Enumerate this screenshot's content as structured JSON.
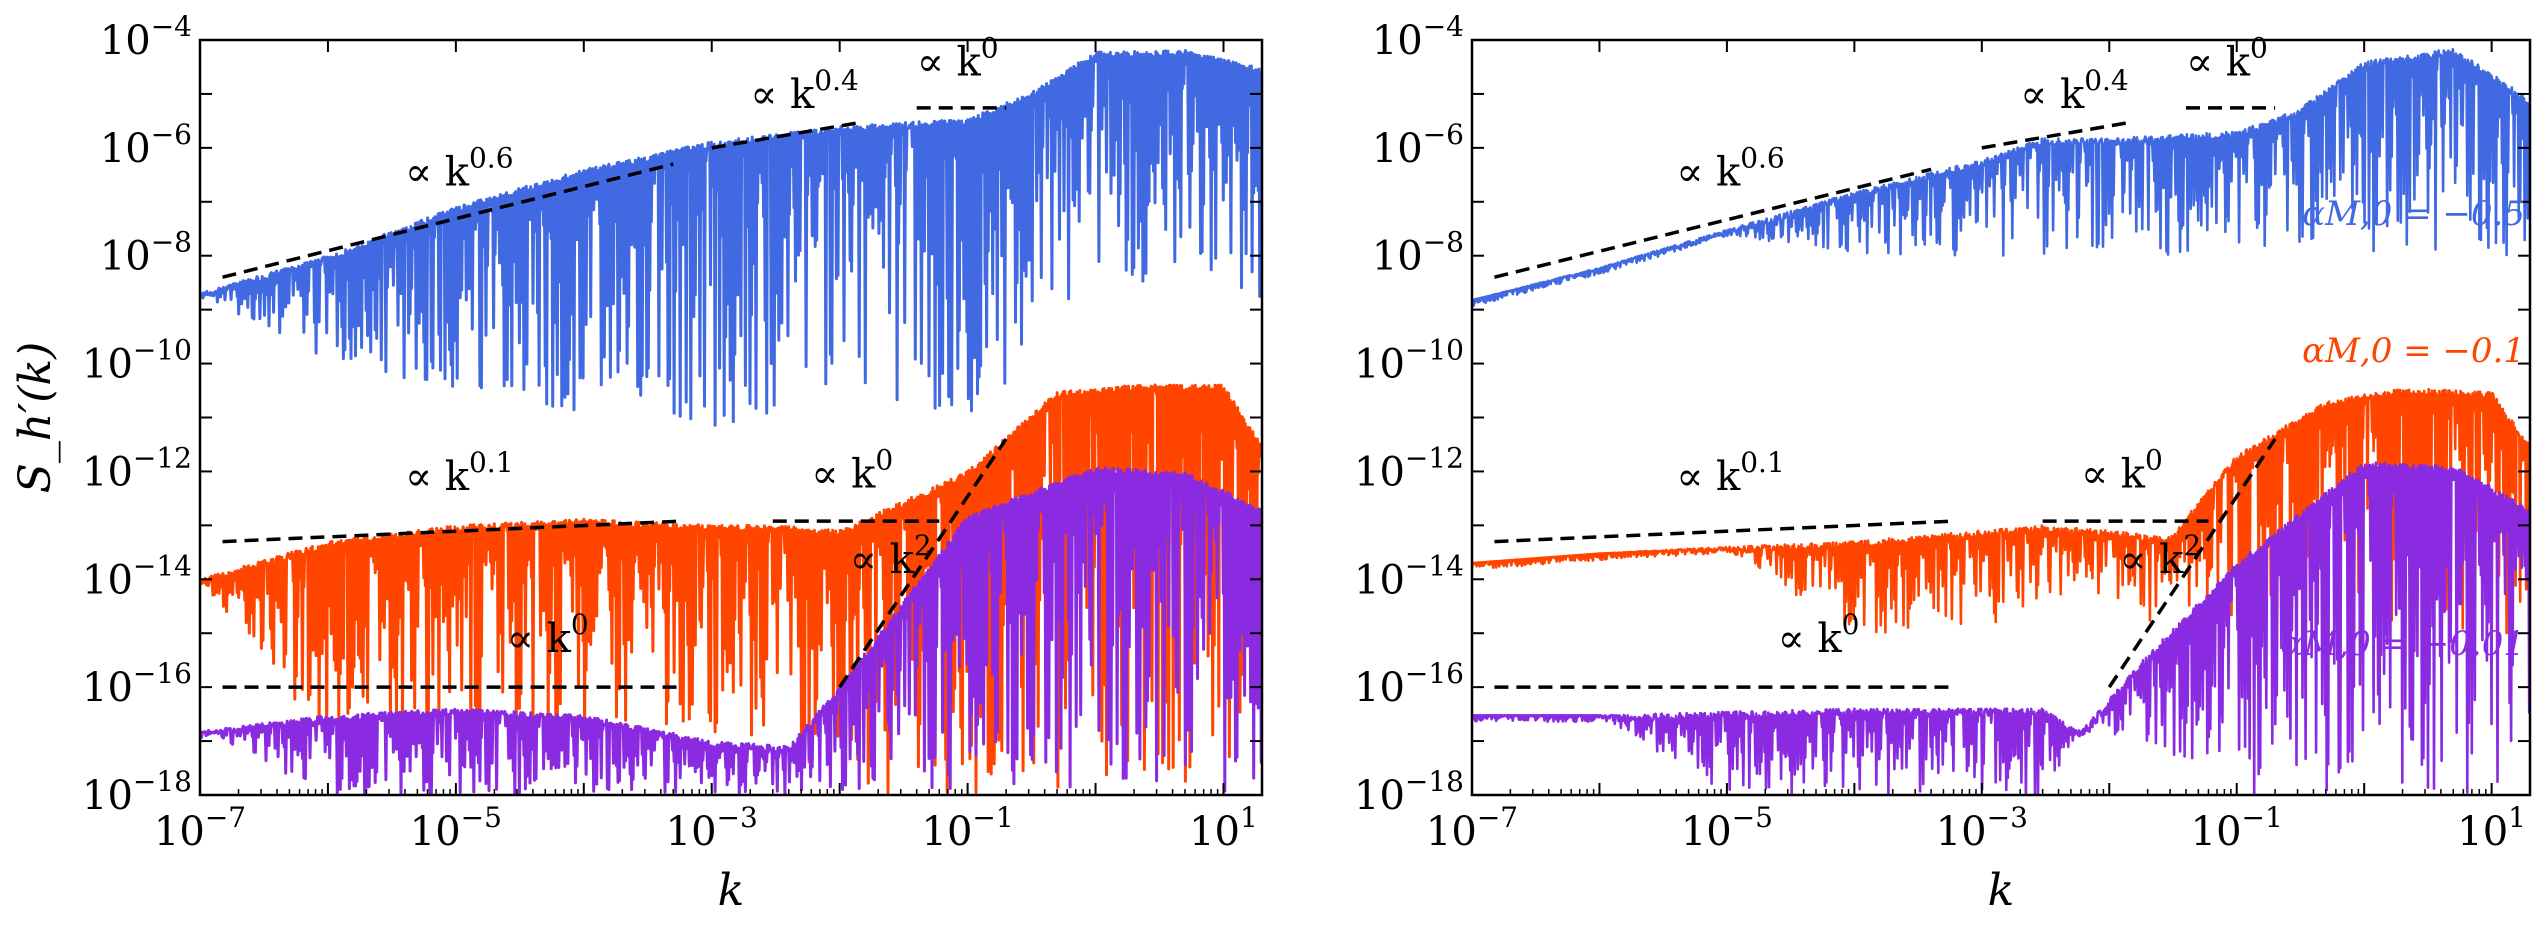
{
  "chart_data": [
    {
      "type": "line",
      "panel": "left",
      "xlabel": "k",
      "ylabel": "S_h′(k)",
      "xscale": "log",
      "yscale": "log",
      "xlim": [
        1e-07,
        20
      ],
      "ylim": [
        1e-18,
        0.0001
      ],
      "x_ticks": [
        {
          "value": 1e-07,
          "base": "10",
          "exp": "−7"
        },
        {
          "value": 1e-05,
          "base": "10",
          "exp": "−5"
        },
        {
          "value": 0.001,
          "base": "10",
          "exp": "−3"
        },
        {
          "value": 0.1,
          "base": "10",
          "exp": "−1"
        },
        {
          "value": 10,
          "base": "10",
          "exp": "1"
        }
      ],
      "y_ticks": [
        {
          "value": 0.0001,
          "base": "10",
          "exp": "−4"
        },
        {
          "value": 1e-06,
          "base": "10",
          "exp": "−6"
        },
        {
          "value": 1e-08,
          "base": "10",
          "exp": "−8"
        },
        {
          "value": 1e-10,
          "base": "10",
          "exp": "−10"
        },
        {
          "value": 1e-12,
          "base": "10",
          "exp": "−12"
        },
        {
          "value": 1e-14,
          "base": "10",
          "exp": "−14"
        },
        {
          "value": 1e-16,
          "base": "10",
          "exp": "−16"
        },
        {
          "value": 1e-18,
          "base": "10",
          "exp": "−18"
        }
      ],
      "series": [
        {
          "color": "#4169e1",
          "x": [
            1e-07,
            1e-06,
            1e-05,
            0.0001,
            0.001,
            0.01,
            0.1,
            0.3,
            1,
            5,
            20
          ],
          "upper": [
            2e-09,
            1e-08,
            8e-08,
            4e-07,
            1.3e-06,
            2.5e-06,
            3.5e-06,
            1e-05,
            6e-05,
            6.5e-05,
            3e-05
          ],
          "lower": [
            2e-09,
            1e-10,
            3e-11,
            1e-11,
            5e-12,
            1e-11,
            1e-11,
            1e-10,
            2e-09,
            5e-09,
            1e-09
          ]
        },
        {
          "color": "#ff4500",
          "x": [
            1e-07,
            1e-06,
            1e-05,
            0.0001,
            0.001,
            0.003,
            0.01,
            0.1,
            0.5,
            2,
            10,
            20
          ],
          "upper": [
            1e-14,
            5e-14,
            1e-13,
            1.3e-13,
            1e-13,
            1e-13,
            8e-14,
            1e-12,
            3e-11,
            4e-11,
            4e-11,
            3e-12
          ],
          "lower": [
            1e-14,
            1e-17,
            1e-17,
            1e-17,
            1e-17,
            1e-17,
            1e-18,
            1e-18,
            1e-18,
            1e-18,
            1e-18,
            1e-18
          ]
        },
        {
          "color": "#8a2be2",
          "x": [
            1e-07,
            1e-06,
            1e-05,
            0.0001,
            0.001,
            0.004,
            0.01,
            0.1,
            1,
            5,
            20
          ],
          "upper": [
            1.5e-17,
            3e-17,
            4e-17,
            3e-17,
            1e-17,
            8e-18,
            1e-16,
            1.5e-13,
            1.2e-12,
            1e-12,
            2e-13
          ],
          "lower": [
            1.5e-17,
            1e-18,
            1e-18,
            1e-18,
            1e-18,
            1e-18,
            1e-18,
            1e-18,
            1e-18,
            1e-18,
            1e-18
          ]
        }
      ],
      "reference_lines": [
        {
          "x": [
            1.5e-07,
            0.0005
          ],
          "y": [
            4e-09,
            5e-07
          ],
          "label": "∝ k",
          "exp": "0.6",
          "label_at": [
            4e-06,
            2e-07
          ]
        },
        {
          "x": [
            0.001,
            0.015
          ],
          "y": [
            1e-06,
            3e-06
          ],
          "label": "∝ k",
          "exp": "0.4",
          "label_at": [
            0.002,
            5.5e-06
          ]
        },
        {
          "x": [
            0.04,
            0.2
          ],
          "y": [
            5.5e-06,
            5.5e-06
          ],
          "label": "∝ k",
          "exp": "0",
          "label_at": [
            0.04,
            2.2e-05
          ]
        },
        {
          "x": [
            1.5e-07,
            0.0006
          ],
          "y": [
            5e-14,
            1.2e-13
          ],
          "label": "∝ k",
          "exp": "0.1",
          "label_at": [
            4e-06,
            4.5e-13
          ]
        },
        {
          "x": [
            0.003,
            0.06
          ],
          "y": [
            1.2e-13,
            1.2e-13
          ],
          "label": "∝ k",
          "exp": "0",
          "label_at": [
            0.006,
            5e-13
          ]
        },
        {
          "x": [
            0.01,
            0.2
          ],
          "y": [
            1e-16,
            4e-12
          ],
          "label": "∝ k",
          "exp": "2",
          "label_at": [
            0.012,
            1.3e-14
          ]
        },
        {
          "x": [
            1.5e-07,
            0.0006
          ],
          "y": [
            1e-16,
            1e-16
          ],
          "label": "∝ k",
          "exp": "0",
          "label_at": [
            2.5e-05,
            4.5e-16
          ]
        }
      ]
    },
    {
      "type": "line",
      "panel": "right",
      "xlabel": "k",
      "xscale": "log",
      "yscale": "log",
      "xlim": [
        1e-07,
        20
      ],
      "ylim": [
        1e-18,
        0.0001
      ],
      "x_ticks": [
        {
          "value": 1e-07,
          "base": "10",
          "exp": "−7"
        },
        {
          "value": 1e-05,
          "base": "10",
          "exp": "−5"
        },
        {
          "value": 0.001,
          "base": "10",
          "exp": "−3"
        },
        {
          "value": 0.1,
          "base": "10",
          "exp": "−1"
        },
        {
          "value": 10,
          "base": "10",
          "exp": "1"
        }
      ],
      "y_ticks": [
        {
          "value": 0.0001,
          "base": "10",
          "exp": "−4"
        },
        {
          "value": 1e-06,
          "base": "10",
          "exp": "−6"
        },
        {
          "value": 1e-08,
          "base": "10",
          "exp": "−8"
        },
        {
          "value": 1e-10,
          "base": "10",
          "exp": "−10"
        },
        {
          "value": 1e-12,
          "base": "10",
          "exp": "−12"
        },
        {
          "value": 1e-14,
          "base": "10",
          "exp": "−14"
        },
        {
          "value": 1e-16,
          "base": "10",
          "exp": "−16"
        },
        {
          "value": 1e-18,
          "base": "10",
          "exp": "−18"
        }
      ],
      "series": [
        {
          "name": "αM,0 = −0.5",
          "color": "#4169e1",
          "x": [
            1e-07,
            1e-06,
            1e-05,
            0.0001,
            0.001,
            0.003,
            0.01,
            0.1,
            0.3,
            1,
            5,
            20
          ],
          "upper": [
            1.5e-09,
            6e-09,
            3e-08,
            1.5e-07,
            6e-07,
            1.5e-06,
            1.5e-06,
            2e-06,
            5e-06,
            4e-05,
            7e-05,
            8e-06
          ],
          "lower": [
            1.5e-09,
            5.5e-09,
            2.5e-08,
            1e-08,
            1e-08,
            1e-08,
            1e-08,
            1e-08,
            1e-08,
            1e-08,
            1e-08,
            1e-08
          ]
        },
        {
          "name": "αM,0 = −0.1",
          "color": "#ff4500",
          "x": [
            1e-07,
            1e-06,
            1e-05,
            0.0001,
            0.001,
            0.003,
            0.01,
            0.03,
            0.1,
            0.5,
            2,
            10,
            20
          ],
          "upper": [
            2e-14,
            3e-14,
            4e-14,
            5e-14,
            8e-14,
            1e-13,
            8e-14,
            6e-14,
            2e-12,
            2e-11,
            3.5e-11,
            3e-11,
            3e-12
          ],
          "lower": [
            2e-14,
            3e-14,
            3.5e-14,
            1e-15,
            1e-15,
            5e-15,
            5e-15,
            1e-15,
            1e-15,
            1e-15,
            1e-15,
            1e-15,
            1e-15
          ]
        },
        {
          "name": "αM,0 = −0.01",
          "color": "#8a2be2",
          "x": [
            1e-07,
            1e-06,
            1e-05,
            0.0001,
            0.001,
            0.003,
            0.006,
            0.02,
            0.1,
            1,
            5,
            20
          ],
          "upper": [
            3e-17,
            3e-17,
            3.5e-17,
            4e-17,
            4e-17,
            4e-17,
            1.5e-17,
            4e-16,
            2e-14,
            1.5e-12,
            1.3e-12,
            2e-13
          ],
          "lower": [
            3e-17,
            3e-17,
            1e-18,
            1e-18,
            1e-18,
            1e-18,
            1.5e-17,
            1e-17,
            1e-18,
            1e-18,
            1e-18,
            1e-18
          ]
        }
      ],
      "reference_lines": [
        {
          "x": [
            1.5e-07,
            0.0004
          ],
          "y": [
            4e-09,
            4e-07
          ],
          "label": "∝ k",
          "exp": "0.6",
          "label_at": [
            4e-06,
            2e-07
          ]
        },
        {
          "x": [
            0.001,
            0.015
          ],
          "y": [
            1e-06,
            3e-06
          ],
          "label": "∝ k",
          "exp": "0.4",
          "label_at": [
            0.002,
            5.5e-06
          ]
        },
        {
          "x": [
            0.04,
            0.2
          ],
          "y": [
            5.5e-06,
            5.5e-06
          ],
          "label": "∝ k",
          "exp": "0",
          "label_at": [
            0.04,
            2.2e-05
          ]
        },
        {
          "x": [
            1.5e-07,
            0.0006
          ],
          "y": [
            5e-14,
            1.2e-13
          ],
          "label": "∝ k",
          "exp": "0.1",
          "label_at": [
            4e-06,
            4.5e-13
          ]
        },
        {
          "x": [
            0.003,
            0.06
          ],
          "y": [
            1.2e-13,
            1.2e-13
          ],
          "label": "∝ k",
          "exp": "0",
          "label_at": [
            0.006,
            5e-13
          ]
        },
        {
          "x": [
            0.01,
            0.2
          ],
          "y": [
            1e-16,
            4e-12
          ],
          "label": "∝ k",
          "exp": "2",
          "label_at": [
            0.012,
            1.3e-14
          ]
        },
        {
          "x": [
            1.5e-07,
            0.0006
          ],
          "y": [
            1e-16,
            1e-16
          ],
          "label": "∝ k",
          "exp": "0",
          "label_at": [
            2.5e-05,
            4.5e-16
          ]
        }
      ],
      "legend": [
        {
          "label": "αM,0 = −0.5",
          "color": "#4169e1"
        },
        {
          "label": "αM,0 = −0.1",
          "color": "#ff4500"
        },
        {
          "label": "αM,0 = −0.01",
          "color": "#8a2be2"
        }
      ]
    }
  ]
}
